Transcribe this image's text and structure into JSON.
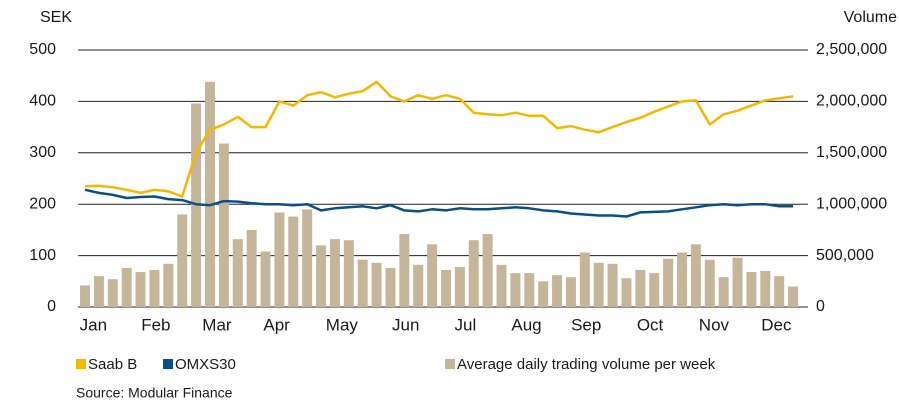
{
  "chart_data": {
    "type": "bar",
    "ylabel": "SEK",
    "y2label": "Volume",
    "source": "Source: Modular Finance",
    "x": [
      1,
      2,
      3,
      4,
      5,
      6,
      7,
      8,
      9,
      10,
      11,
      12,
      13,
      14,
      15,
      16,
      17,
      18,
      19,
      20,
      21,
      22,
      23,
      24,
      25,
      26,
      27,
      28,
      29,
      30,
      31,
      32,
      33,
      34,
      35,
      36,
      37,
      38,
      39,
      40,
      41,
      42,
      43,
      44,
      45,
      46,
      47,
      48,
      49,
      50,
      51,
      52
    ],
    "xlim": [
      0.5,
      52.5
    ],
    "xticks": [
      {
        "value": 1.6,
        "label": "Jan"
      },
      {
        "value": 6.1,
        "label": "Feb"
      },
      {
        "value": 10.5,
        "label": "Mar"
      },
      {
        "value": 14.8,
        "label": "Apr"
      },
      {
        "value": 19.5,
        "label": "May"
      },
      {
        "value": 24.1,
        "label": "Jun"
      },
      {
        "value": 28.4,
        "label": "Jul"
      },
      {
        "value": 32.8,
        "label": "Aug"
      },
      {
        "value": 37.1,
        "label": "Sep"
      },
      {
        "value": 41.7,
        "label": "Oct"
      },
      {
        "value": 46.3,
        "label": "Nov"
      },
      {
        "value": 50.8,
        "label": "Dec"
      }
    ],
    "ylim": [
      0,
      500
    ],
    "yticks": [
      0,
      100,
      200,
      300,
      400,
      500
    ],
    "y2lim": [
      0,
      2500000
    ],
    "y2ticks": [
      0,
      {
        "value": 500000,
        "label": "500,000"
      },
      {
        "value": 1000000,
        "label": "1,000,000"
      },
      {
        "value": 1500000,
        "label": "1,500,000"
      },
      {
        "value": 2000000,
        "label": "2,000,000"
      },
      {
        "value": 2500000,
        "label": "2,500,000"
      }
    ],
    "grid": true,
    "series": [
      {
        "name": "Average daily trading volume per week",
        "type": "bar",
        "axis": "y2",
        "color": "#c5b69b",
        "values": [
          210000,
          300000,
          270000,
          380000,
          340000,
          360000,
          420000,
          900000,
          1980000,
          2190000,
          1590000,
          660000,
          750000,
          540000,
          920000,
          880000,
          950000,
          600000,
          660000,
          650000,
          460000,
          430000,
          380000,
          710000,
          410000,
          610000,
          360000,
          390000,
          650000,
          710000,
          410000,
          330000,
          330000,
          250000,
          310000,
          290000,
          530000,
          430000,
          420000,
          280000,
          360000,
          330000,
          470000,
          530000,
          610000,
          460000,
          290000,
          480000,
          340000,
          350000,
          300000,
          200000
        ]
      },
      {
        "name": "Saab B",
        "type": "line",
        "color": "#f5b800",
        "values": [
          235,
          236,
          233,
          228,
          222,
          228,
          225,
          215,
          300,
          345,
          355,
          370,
          350,
          350,
          400,
          392,
          412,
          418,
          408,
          415,
          420,
          438,
          410,
          400,
          412,
          405,
          412,
          405,
          378,
          375,
          373,
          378,
          372,
          372,
          348,
          352,
          345,
          340,
          350,
          360,
          368,
          380,
          390,
          400,
          402,
          355,
          375,
          382,
          392,
          402,
          406,
          410
        ]
      },
      {
        "name": "OMXS30",
        "type": "line",
        "color": "#0a4f86",
        "values": [
          228,
          222,
          218,
          212,
          214,
          215,
          210,
          208,
          200,
          198,
          206,
          205,
          202,
          200,
          200,
          198,
          200,
          188,
          192,
          194,
          196,
          192,
          198,
          188,
          186,
          190,
          188,
          192,
          190,
          190,
          192,
          194,
          192,
          188,
          186,
          182,
          180,
          178,
          178,
          176,
          184,
          185,
          186,
          190,
          194,
          198,
          200,
          198,
          200,
          200,
          196,
          196
        ]
      }
    ],
    "legend": "bottom"
  }
}
